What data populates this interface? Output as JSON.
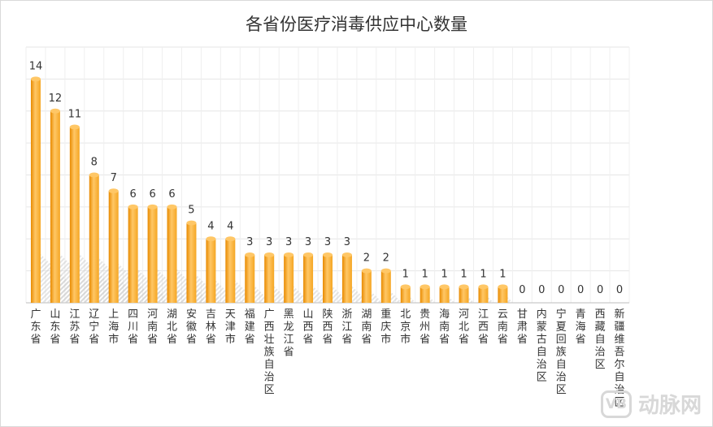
{
  "chart_data": {
    "type": "bar",
    "title": "各省份医疗消毒供应中心数量",
    "xlabel": "",
    "ylabel": "",
    "ylim": [
      0,
      16
    ],
    "grid": true,
    "categories": [
      "广东省",
      "山东省",
      "江苏省",
      "辽宁省",
      "上海市",
      "四川省",
      "河南省",
      "湖北省",
      "安徽省",
      "吉林省",
      "天津市",
      "福建省",
      "广西壮族自治区",
      "黑龙江省",
      "山西省",
      "陕西省",
      "浙江省",
      "湖南省",
      "重庆市",
      "北京市",
      "贵州省",
      "海南省",
      "河北省",
      "江西省",
      "云南省",
      "甘肃省",
      "内蒙古自治区",
      "宁夏回族自治区",
      "青海省",
      "西藏自治区",
      "新疆维吾尔自治区"
    ],
    "values": [
      14,
      12,
      11,
      8,
      7,
      6,
      6,
      6,
      5,
      4,
      4,
      3,
      3,
      3,
      3,
      3,
      3,
      2,
      2,
      1,
      1,
      1,
      1,
      1,
      1,
      0,
      0,
      0,
      0,
      0,
      0
    ],
    "colors": {
      "bar": "#f5a623",
      "bar_light": "#ffc766",
      "bar_dark": "#e88a00"
    }
  },
  "watermark": {
    "logo": "VB",
    "text": "动脉网"
  }
}
